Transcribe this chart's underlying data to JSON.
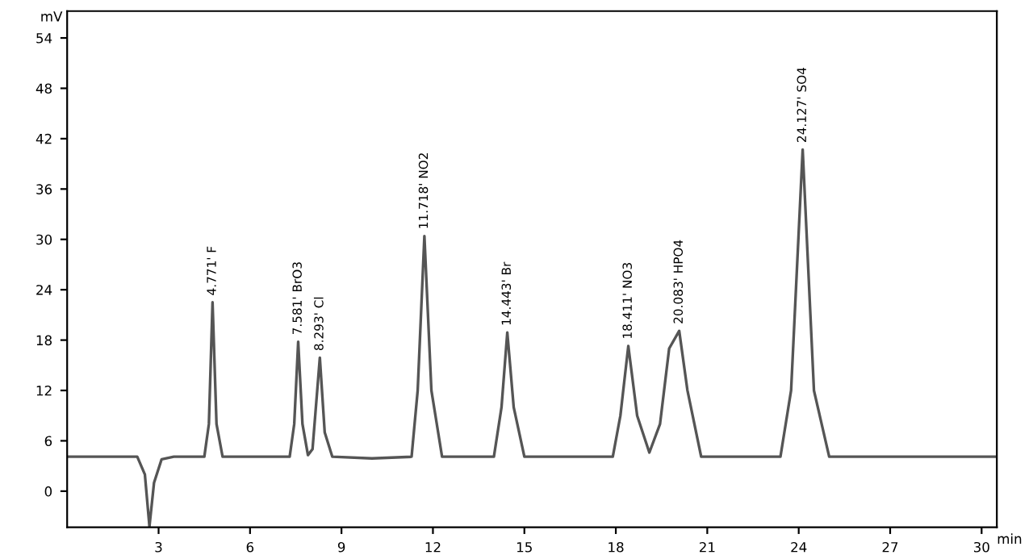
{
  "chart_data": {
    "type": "line",
    "xlabel": "min",
    "ylabel": "mV",
    "xlim": [
      0,
      30.5
    ],
    "ylim": [
      -4.3,
      57.2
    ],
    "xticks": [
      3,
      6,
      9,
      12,
      15,
      18,
      21,
      24,
      27,
      30
    ],
    "yticks": [
      0,
      6,
      12,
      18,
      24,
      30,
      36,
      42,
      48,
      54
    ],
    "grid": false,
    "legend": false,
    "marker": "none",
    "line_style": "solid",
    "series": [
      {
        "color": "#555555",
        "x": [
          0,
          2.3,
          2.55,
          2.7,
          2.85,
          3.1,
          3.5,
          4.5,
          4.65,
          4.77,
          4.9,
          5.1,
          7.3,
          7.45,
          7.58,
          7.72,
          7.9,
          8.05,
          8.29,
          8.45,
          8.7,
          10.0,
          11.3,
          11.5,
          11.72,
          11.95,
          12.3,
          14.0,
          14.25,
          14.44,
          14.65,
          15.0,
          17.9,
          18.15,
          18.41,
          18.7,
          19.1,
          19.45,
          19.75,
          20.08,
          20.35,
          20.8,
          23.4,
          23.75,
          24.13,
          24.5,
          25.0,
          30.5
        ],
        "values": [
          4.1,
          4.1,
          2,
          -4.2,
          1,
          3.8,
          4.1,
          4.1,
          8,
          22.5,
          8,
          4.1,
          4.1,
          8,
          17.8,
          8,
          4.3,
          5,
          15.9,
          7,
          4.1,
          3.9,
          4.1,
          12,
          30.4,
          12,
          4.1,
          4.1,
          10,
          18.9,
          10,
          4.1,
          4.1,
          9,
          17.3,
          9,
          4.6,
          8,
          17,
          19.1,
          12,
          4.1,
          4.1,
          12,
          40.7,
          12,
          4.1,
          4.1
        ]
      }
    ],
    "annotations": [
      {
        "text": "4.771' F",
        "x": 4.77,
        "y": 22.5
      },
      {
        "text": "7.581' BrO3",
        "x": 7.58,
        "y": 17.8
      },
      {
        "text": "8.293' Cl",
        "x": 8.29,
        "y": 15.9
      },
      {
        "text": "11.718' NO2",
        "x": 11.72,
        "y": 30.4
      },
      {
        "text": "14.443' Br",
        "x": 14.44,
        "y": 18.9
      },
      {
        "text": "18.411' NO3",
        "x": 18.41,
        "y": 17.3
      },
      {
        "text": "20.083' HPO4",
        "x": 20.08,
        "y": 19.1
      },
      {
        "text": "24.127' SO4",
        "x": 24.13,
        "y": 40.7
      }
    ]
  }
}
